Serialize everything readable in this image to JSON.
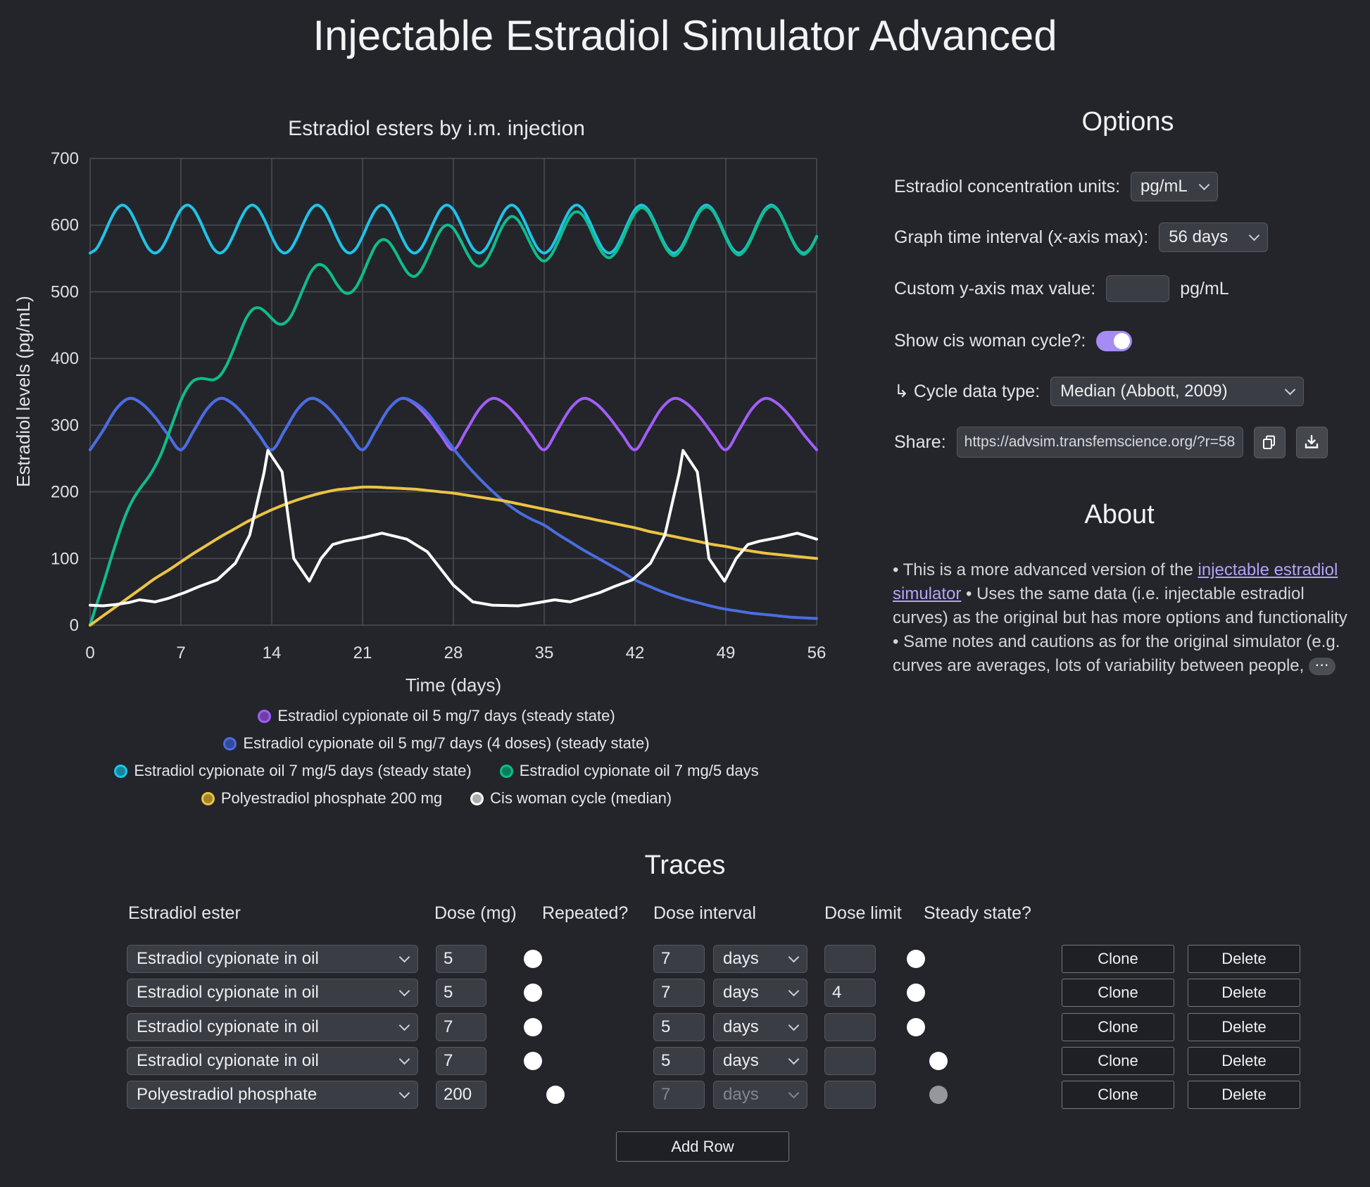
{
  "page_title": "Injectable Estradiol Simulator Advanced",
  "chart_data": {
    "type": "line",
    "title": "Estradiol esters by i.m. injection",
    "xlabel": "Time (days)",
    "ylabel": "Estradiol levels (pg/mL)",
    "xlim": [
      0,
      56
    ],
    "ylim": [
      0,
      700
    ],
    "x_ticks": [
      0,
      7,
      14,
      21,
      28,
      35,
      42,
      49,
      56
    ],
    "y_ticks": [
      0,
      100,
      200,
      300,
      400,
      500,
      600,
      700
    ],
    "grid": true,
    "legend_position": "bottom",
    "series": [
      {
        "name": "Estradiol cypionate oil 5 mg/7 days (steady state)",
        "color": "#a15ef7",
        "smooth": true,
        "x_step": 1,
        "values": [
          263,
          292,
          324,
          340,
          332,
          312,
          286,
          263,
          292,
          324,
          340,
          332,
          312,
          286,
          263,
          292,
          324,
          340,
          332,
          312,
          286,
          263,
          292,
          324,
          340,
          332,
          312,
          286,
          263,
          292,
          324,
          340,
          332,
          312,
          286,
          263,
          292,
          324,
          340,
          332,
          312,
          286,
          263,
          292,
          324,
          340,
          332,
          312,
          286,
          263,
          292,
          324,
          340,
          332,
          312,
          286,
          263
        ]
      },
      {
        "name": "Estradiol cypionate oil 5 mg/7 days (4 doses) (steady state)",
        "color": "#4a6de0",
        "smooth": true,
        "x_step": 1,
        "values": [
          263,
          292,
          324,
          340,
          332,
          312,
          286,
          263,
          292,
          324,
          340,
          332,
          312,
          286,
          263,
          292,
          324,
          340,
          332,
          312,
          286,
          263,
          292,
          324,
          340,
          334,
          318,
          292,
          265,
          241,
          220,
          201,
          184,
          170,
          159,
          150,
          137,
          125,
          113,
          102,
          91,
          80,
          68,
          59,
          51,
          44,
          38,
          33,
          28,
          24,
          21,
          18,
          16,
          14,
          12,
          11,
          10
        ]
      },
      {
        "name": "Estradiol cypionate oil 7 mg/5 days (steady state)",
        "color": "#1fc4e8",
        "smooth": true,
        "x_step": 0.5,
        "values": [
          558,
          565,
          583,
          605,
          623,
          630,
          623,
          605,
          583,
          565,
          558,
          565,
          583,
          605,
          623,
          630,
          623,
          605,
          583,
          565,
          558,
          565,
          583,
          605,
          623,
          630,
          623,
          605,
          583,
          565,
          558,
          565,
          583,
          605,
          623,
          630,
          623,
          605,
          583,
          565,
          558,
          565,
          583,
          605,
          623,
          630,
          623,
          605,
          583,
          565,
          558,
          565,
          583,
          605,
          623,
          630,
          623,
          605,
          583,
          565,
          558,
          565,
          583,
          605,
          623,
          630,
          623,
          605,
          583,
          565,
          558,
          565,
          583,
          605,
          623,
          630,
          623,
          605,
          583,
          565,
          558,
          565,
          583,
          605,
          623,
          630,
          623,
          605,
          583,
          565,
          558,
          565,
          583,
          605,
          623,
          630,
          623,
          605,
          583,
          565,
          558,
          565,
          583,
          605,
          623,
          630,
          623,
          605,
          583,
          565,
          558,
          565,
          583
        ]
      },
      {
        "name": "Estradiol cypionate oil 7 mg/5 days",
        "color": "#10bc8c",
        "smooth": true,
        "x_step": 0.5,
        "values": [
          0,
          31,
          61,
          93,
          124,
          153,
          177,
          195,
          209,
          222,
          238,
          258,
          284,
          311,
          337,
          356,
          367,
          370,
          369,
          368,
          374,
          389,
          411,
          436,
          459,
          473,
          476,
          470,
          460,
          452,
          453,
          464,
          485,
          508,
          529,
          540,
          539,
          528,
          512,
          500,
          498,
          507,
          526,
          549,
          569,
          578,
          575,
          561,
          543,
          528,
          523,
          532,
          551,
          573,
          592,
          600,
          595,
          579,
          560,
          544,
          538,
          546,
          564,
          587,
          605,
          613,
          607,
          590,
          570,
          553,
          546,
          554,
          572,
          594,
          613,
          620,
          614,
          597,
          575,
          558,
          551,
          559,
          577,
          600,
          618,
          626,
          620,
          602,
          580,
          562,
          554,
          562,
          580,
          602,
          620,
          627,
          621,
          603,
          581,
          563,
          555,
          563,
          581,
          603,
          621,
          628,
          622,
          604,
          582,
          564,
          556,
          564,
          582
        ]
      },
      {
        "name": "Polyestradiol phosphate 200 mg",
        "color": "#ecc443",
        "smooth": true,
        "x_step": 1,
        "values": [
          0,
          14,
          28,
          42,
          56,
          70,
          82,
          95,
          108,
          120,
          132,
          143,
          154,
          164,
          173,
          181,
          188,
          194,
          199,
          203,
          205,
          207,
          207,
          206,
          205,
          204,
          202,
          200,
          198,
          195,
          192,
          189,
          186,
          182,
          178,
          174,
          170,
          166,
          162,
          158,
          154,
          150,
          146,
          141,
          137,
          133,
          129,
          125,
          121,
          118,
          114,
          111,
          108,
          106,
          104,
          102,
          100
        ]
      },
      {
        "name": "Cis woman cycle (median)",
        "color": "#ffffff",
        "smooth": false,
        "x": [
          0,
          1,
          2,
          3,
          3.8,
          5,
          6,
          7.3,
          8.4,
          9.8,
          11.2,
          12.3,
          13.4,
          13.7,
          14.8,
          15.7,
          16.9,
          17.8,
          18.7,
          19.6,
          21.2,
          22.5,
          24.4,
          26,
          28,
          29.5,
          31,
          33,
          34,
          35.8,
          37,
          39.3,
          40.4,
          41.8,
          43.2,
          44.3,
          45.4,
          45.7,
          46.8,
          47.7,
          48.9,
          49.8,
          50.7,
          51.6,
          53.2,
          54.5,
          56
        ],
        "y": [
          30,
          29,
          31,
          34,
          38,
          35,
          40,
          49,
          58,
          68,
          93,
          135,
          228,
          262,
          230,
          100,
          66,
          100,
          121,
          126,
          132,
          138,
          129,
          110,
          60,
          35,
          30,
          29,
          32,
          38,
          35,
          49,
          58,
          68,
          93,
          135,
          228,
          262,
          230,
          100,
          66,
          100,
          121,
          126,
          132,
          138,
          129
        ]
      }
    ],
    "legend_rows": [
      [
        0
      ],
      [
        1
      ],
      [
        2,
        3
      ],
      [
        4,
        5
      ]
    ]
  },
  "options": {
    "heading": "Options",
    "units_label": "Estradiol concentration units:",
    "units_value": "pg/mL",
    "interval_label": "Graph time interval (x-axis max):",
    "interval_value": "56 days",
    "ymax_label": "Custom y-axis max value:",
    "ymax_value": "",
    "ymax_unit": "pg/mL",
    "cycle_toggle_label": "Show cis woman cycle?:",
    "cycle_type_label": "↳ Cycle data type:",
    "cycle_type_value": "Median (Abbott, 2009)",
    "share_label": "Share:",
    "share_url": "https://advsim.transfemscience.org/?r=58"
  },
  "about": {
    "heading": "About",
    "text_1": "• This is a more advanced version of the ",
    "link_text": "injectable estradiol simulator",
    "text_2": " • Uses the same data (i.e. injectable estradiol curves) as the original but has more options and functionality • Same notes and cautions as for the original simulator (e.g. curves are averages, lots of variability between people, ",
    "ellipsis": "⋯"
  },
  "traces": {
    "heading": "Traces",
    "headers": {
      "ester": "Estradiol ester",
      "dose": "Dose (mg)",
      "repeated": "Repeated?",
      "interval": "Dose interval",
      "limit": "Dose limit",
      "steady": "Steady state?"
    },
    "clone_label": "Clone",
    "delete_label": "Delete",
    "add_row_label": "Add Row",
    "rows": [
      {
        "color": "#a15ef7",
        "ester": "Estradiol cypionate in oil",
        "dose": "5",
        "repeated": true,
        "interval": "7",
        "unit": "days",
        "limit": "",
        "steady": true,
        "enabled": true
      },
      {
        "color": "#4a6de0",
        "ester": "Estradiol cypionate in oil",
        "dose": "5",
        "repeated": true,
        "interval": "7",
        "unit": "days",
        "limit": "4",
        "steady": true,
        "enabled": true
      },
      {
        "color": "#1fc4e8",
        "ester": "Estradiol cypionate in oil",
        "dose": "7",
        "repeated": true,
        "interval": "5",
        "unit": "days",
        "limit": "",
        "steady": true,
        "enabled": true
      },
      {
        "color": "#10bc8c",
        "ester": "Estradiol cypionate in oil",
        "dose": "7",
        "repeated": true,
        "interval": "5",
        "unit": "days",
        "limit": "",
        "steady": false,
        "enabled": true
      },
      {
        "color": "#ecc443",
        "ester": "Polyestradiol phosphate",
        "dose": "200",
        "repeated": false,
        "interval": "7",
        "unit": "days",
        "limit": "",
        "steady": false,
        "enabled": false
      }
    ]
  }
}
